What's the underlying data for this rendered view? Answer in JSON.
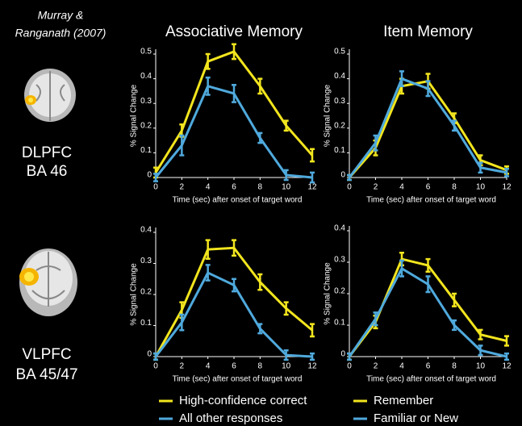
{
  "citation": [
    "Murray &",
    "Ranganath (2007)"
  ],
  "regions": [
    {
      "name": "DLPFC",
      "area": "BA 46"
    },
    {
      "name": "VLPFC",
      "area": "BA 45/47"
    }
  ],
  "chart_data": [
    {
      "type": "line",
      "title": "Associative Memory",
      "x_label": "Time (sec) after onset of target word",
      "y_label": "% Signal Change",
      "x": [
        0,
        2,
        4,
        6,
        8,
        10,
        12
      ],
      "xlim": [
        0,
        12
      ],
      "xticks": [
        0,
        2,
        4,
        6,
        8,
        10,
        12
      ],
      "ylim": [
        0,
        0.5
      ],
      "yticks": [
        0,
        0.1,
        0.2,
        0.3,
        0.4,
        0.5
      ],
      "series": [
        {
          "color": "#f2e51e",
          "values": [
            0.02,
            0.19,
            0.47,
            0.51,
            0.37,
            0.21,
            0.09
          ],
          "errors": [
            0.02,
            0.025,
            0.03,
            0.03,
            0.03,
            0.02,
            0.025
          ]
        },
        {
          "color": "#4fa9dc",
          "values": [
            0,
            0.13,
            0.37,
            0.34,
            0.16,
            0.01,
            0.0
          ],
          "errors": [
            0.015,
            0.04,
            0.035,
            0.035,
            0.02,
            0.02,
            0.02
          ]
        }
      ]
    },
    {
      "type": "line",
      "title": "Item Memory",
      "x_label": "Time (sec) after onset of target word",
      "y_label": "% Signal Change",
      "x": [
        0,
        2,
        4,
        6,
        8,
        10,
        12
      ],
      "xlim": [
        0,
        12
      ],
      "xticks": [
        0,
        2,
        4,
        6,
        8,
        10,
        12
      ],
      "ylim": [
        0,
        0.5
      ],
      "yticks": [
        0,
        0.1,
        0.2,
        0.3,
        0.4,
        0.5
      ],
      "series": [
        {
          "color": "#f2e51e",
          "values": [
            0,
            0.12,
            0.37,
            0.39,
            0.24,
            0.07,
            0.03
          ],
          "errors": [
            0.01,
            0.03,
            0.03,
            0.03,
            0.02,
            0.02,
            0.015
          ]
        },
        {
          "color": "#4fa9dc",
          "values": [
            0,
            0.14,
            0.4,
            0.36,
            0.21,
            0.04,
            0.02
          ],
          "errors": [
            0.01,
            0.03,
            0.03,
            0.03,
            0.02,
            0.02,
            0.015
          ]
        }
      ]
    },
    {
      "type": "line",
      "x_label": "Time (sec) after onset of target word",
      "y_label": "% Signal Change",
      "x": [
        0,
        2,
        4,
        6,
        8,
        10,
        12
      ],
      "xlim": [
        0,
        12
      ],
      "xticks": [
        0,
        2,
        4,
        6,
        8,
        10,
        12
      ],
      "ylim": [
        0,
        0.4
      ],
      "yticks": [
        0,
        0.1,
        0.2,
        0.3,
        0.4
      ],
      "series": [
        {
          "name": "High-confidence correct",
          "color": "#f2e51e",
          "values": [
            0,
            0.15,
            0.345,
            0.35,
            0.24,
            0.155,
            0.085
          ],
          "errors": [
            0.01,
            0.025,
            0.03,
            0.025,
            0.025,
            0.02,
            0.02
          ]
        },
        {
          "name": "All other responses",
          "color": "#4fa9dc",
          "values": [
            0,
            0.11,
            0.27,
            0.23,
            0.09,
            0.005,
            0.0
          ],
          "errors": [
            0.01,
            0.025,
            0.025,
            0.02,
            0.015,
            0.015,
            0.01
          ]
        }
      ]
    },
    {
      "type": "line",
      "x_label": "Time (sec) after onset of target word",
      "y_label": "% Signal Change",
      "x": [
        0,
        2,
        4,
        6,
        8,
        10,
        12
      ],
      "xlim": [
        0,
        12
      ],
      "xticks": [
        0,
        2,
        4,
        6,
        8,
        10,
        12
      ],
      "ylim": [
        0,
        0.4
      ],
      "yticks": [
        0,
        0.1,
        0.2,
        0.3,
        0.4
      ],
      "series": [
        {
          "name": "Remember",
          "color": "#f2e51e",
          "values": [
            0,
            0.11,
            0.31,
            0.29,
            0.18,
            0.07,
            0.05
          ],
          "errors": [
            0.01,
            0.02,
            0.02,
            0.02,
            0.02,
            0.015,
            0.015
          ]
        },
        {
          "name": "Familiar or New",
          "color": "#4fa9dc",
          "values": [
            0,
            0.12,
            0.28,
            0.23,
            0.1,
            0.02,
            0.0
          ],
          "errors": [
            0.01,
            0.02,
            0.025,
            0.025,
            0.015,
            0.015,
            0.01
          ]
        }
      ]
    }
  ]
}
